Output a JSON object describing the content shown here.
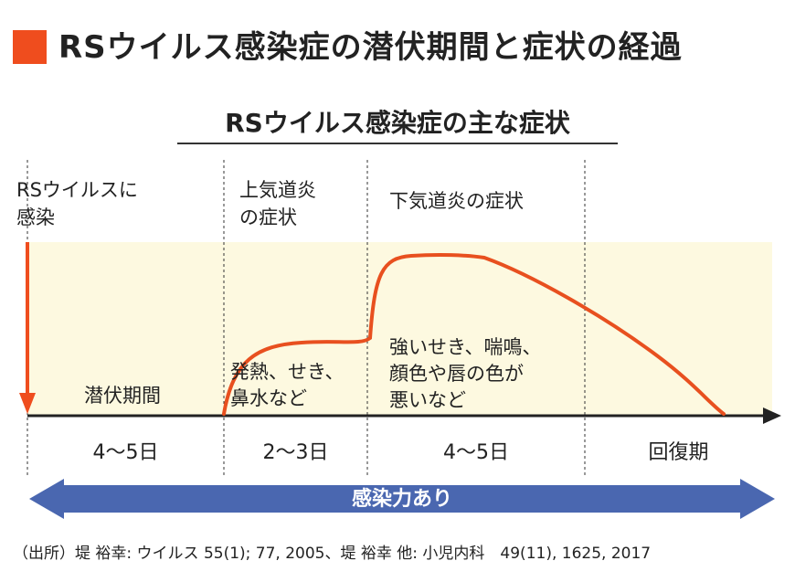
{
  "header": {
    "title": "RSウイルス感染症の潜伏期間と症状の経過",
    "accent_color": "#ef4d1e"
  },
  "diagram": {
    "subtitle": "RSウイルス感染症の主な症状",
    "infection_label": "RSウイルスに\n感染",
    "phases": [
      {
        "top_label": "",
        "symptoms": "潜伏期間",
        "duration": "4〜5日"
      },
      {
        "top_label": "上気道炎\nの症状",
        "symptoms": "発熱、せき、\n鼻水など",
        "duration": "2〜3日"
      },
      {
        "top_label": "下気道炎の症状",
        "symptoms": "強いせき、喘鳴、\n顔色や唇の色が\n悪いなど",
        "duration": "4〜5日"
      },
      {
        "top_label": "",
        "symptoms": "",
        "duration": "回復期"
      }
    ],
    "infectivity_label": "感染力あり",
    "colors": {
      "curve": "#e8501f",
      "band": "#fdf9e0",
      "infectivity_arrow": "#4a67b0",
      "axis": "#222222"
    }
  },
  "footer": {
    "source": "（出所）堤 裕幸: ウイルス 55(1); 77, 2005、堤 裕幸 他: 小児内科　49(11), 1625, 2017"
  }
}
